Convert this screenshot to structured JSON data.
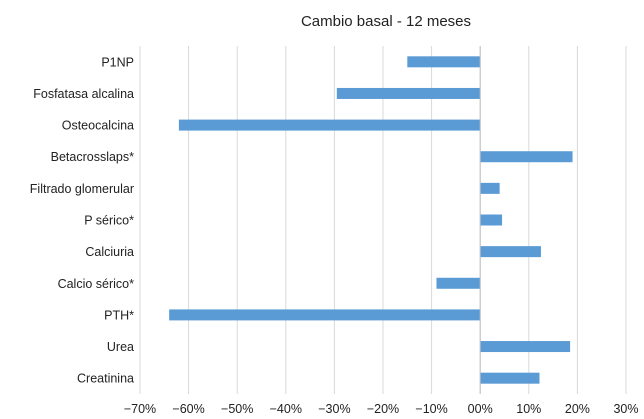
{
  "chart_data": {
    "type": "bar",
    "orientation": "horizontal",
    "title": "Cambio basal - 12 meses",
    "xlabel": "",
    "ylabel": "",
    "categories": [
      "P1NP",
      "Fosfatasa alcalina",
      "Osteocalcina",
      "Betacrosslaps*",
      "Filtrado glomerular",
      "P sérico*",
      "Calciuria",
      "Calcio sérico*",
      "PTH*",
      "Urea",
      "Creatinina"
    ],
    "values": [
      -15,
      -29.5,
      -62,
      19,
      4,
      4.5,
      12.5,
      -9,
      -64,
      18.5,
      12.2
    ],
    "xlim": [
      -70,
      30
    ],
    "xticks": [
      -70,
      -60,
      -50,
      -40,
      -30,
      -20,
      -10,
      0,
      10,
      20,
      30
    ],
    "xtick_labels": [
      "−70%",
      "−60%",
      "−50%",
      "−40%",
      "−30%",
      "−20%",
      "−10%",
      "00%",
      "10%",
      "20%",
      "30%"
    ],
    "grid": "vertical",
    "legend": "none",
    "colors": {
      "bar": "#5B9BD5",
      "grid": "#D9D9D9",
      "axis": "#BFBFBF",
      "text": "#222222"
    }
  }
}
